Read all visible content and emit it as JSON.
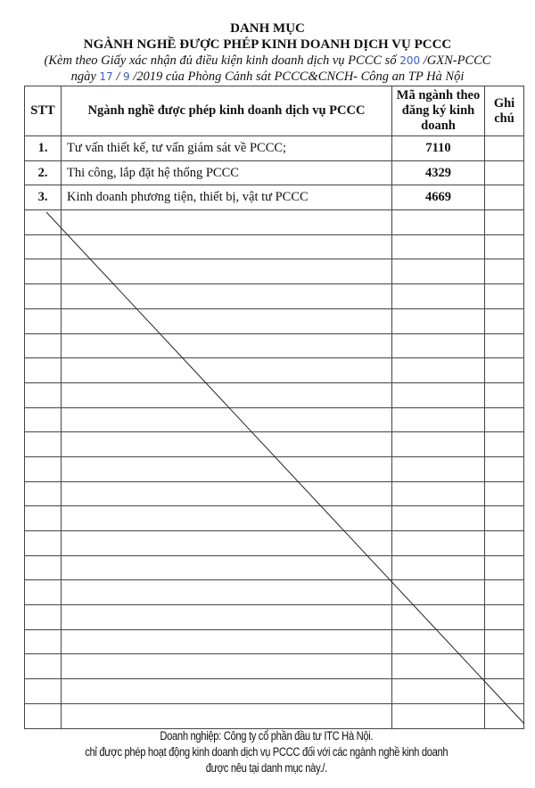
{
  "header": {
    "title": "DANH MỤC",
    "subtitle": "NGÀNH NGHỀ ĐƯỢC PHÉP KINH DOANH DỊCH VỤ PCCC",
    "note_line1_a": "(Kèm theo Giấy xác nhận đủ điều kiện kinh doanh dịch vụ PCCC số ",
    "note_number": "200",
    "note_line1_b": " /GXN-PCCC",
    "note_line2_a": "ngày ",
    "note_day": "17",
    "note_sep": " / ",
    "note_month": "9",
    "note_line2_b": " /2019 của Phòng Cảnh sát PCCC&CNCH- Công an TP Hà Nội"
  },
  "table": {
    "columns": [
      "STT",
      "Ngành nghề được phép kinh doanh dịch vụ PCCC",
      "Mã ngành theo đăng ký kinh doanh",
      "Ghi chú"
    ],
    "rows": [
      {
        "stt": "1.",
        "name": "Tư vấn thiết kế, tư vấn giám sát về PCCC;",
        "code": "7110",
        "note": ""
      },
      {
        "stt": "2.",
        "name": "Thi công, lắp đặt hệ thống PCCC",
        "code": "4329",
        "note": ""
      },
      {
        "stt": "3.",
        "name": "Kinh doanh phương tiện, thiết bị, vật tư PCCC",
        "code": "4669",
        "note": ""
      }
    ],
    "empty_rows": 21
  },
  "footer": {
    "line1": "Doanh nghiệp: Công ty cổ phần đầu tư ITC Hà Nội.",
    "line2": "chỉ được phép hoạt động kinh doanh dịch vụ PCCC đối với các ngành nghề kinh doanh",
    "line3": "được nêu tại danh mục này./."
  },
  "colors": {
    "ink": "#111111",
    "handwriting": "#3a5fc8"
  }
}
